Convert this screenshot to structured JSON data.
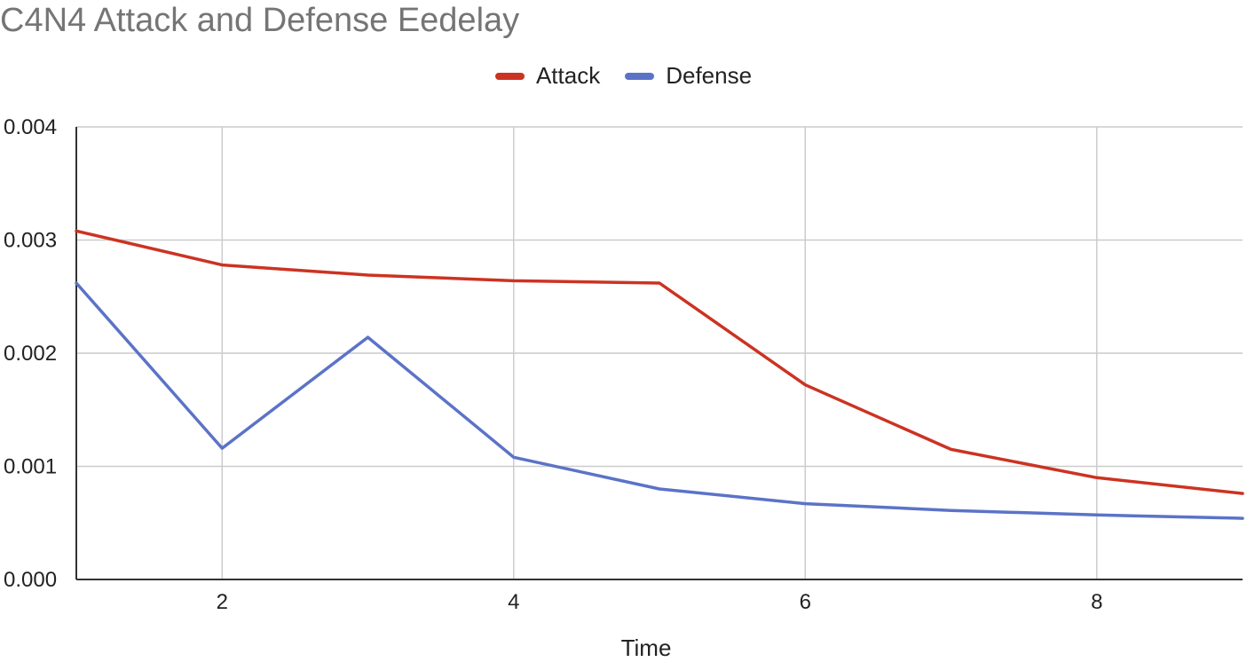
{
  "chart_data": {
    "type": "line",
    "title": "C4N4 Attack and Defense Eedelay",
    "xlabel": "Time",
    "ylabel": "",
    "x": [
      1,
      2,
      3,
      4,
      5,
      6,
      7,
      8,
      9
    ],
    "xlim": [
      1,
      9
    ],
    "ylim": [
      0,
      0.004
    ],
    "x_ticks": [
      "2",
      "4",
      "6",
      "8"
    ],
    "x_tick_values": [
      2,
      4,
      6,
      8
    ],
    "y_ticks": [
      "0.000",
      "0.001",
      "0.002",
      "0.003",
      "0.004"
    ],
    "y_tick_values": [
      0,
      0.001,
      0.002,
      0.003,
      0.004
    ],
    "grid": true,
    "legend_position": "top",
    "series": [
      {
        "name": "Attack",
        "color": "#cc3322",
        "values": [
          0.00308,
          0.00278,
          0.00269,
          0.00264,
          0.00262,
          0.00172,
          0.00115,
          0.0009,
          0.00076
        ]
      },
      {
        "name": "Defense",
        "color": "#5b73c7",
        "values": [
          0.00262,
          0.00116,
          0.00214,
          0.00108,
          0.0008,
          0.00067,
          0.00061,
          0.00057,
          0.00054
        ]
      }
    ]
  }
}
